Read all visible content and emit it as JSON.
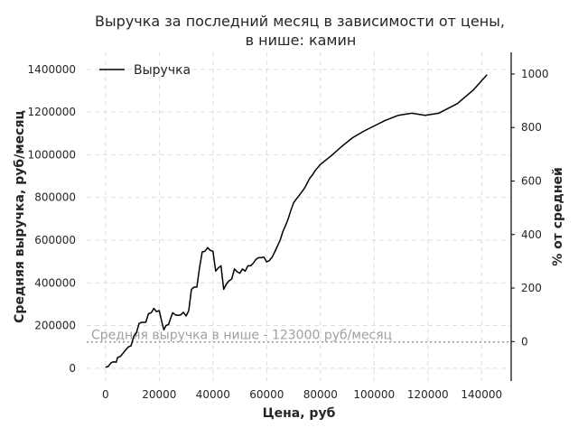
{
  "chart_data": {
    "type": "line",
    "title_line1": "Выручка за последний месяц в зависимости от цены,",
    "title_line2": "в нише: камин",
    "xlabel": "Цена, руб",
    "ylabel": "Средняя выручка, руб/месяц",
    "ylabel_right": "% от средней",
    "xlim": [
      -7000,
      151000
    ],
    "ylim": [
      -60000,
      1480000
    ],
    "ylim_right": [
      -147.5,
      1080.9
    ],
    "x_ticks": [
      0,
      20000,
      40000,
      60000,
      80000,
      100000,
      120000,
      140000
    ],
    "y_ticks": [
      0,
      200000,
      400000,
      600000,
      800000,
      1000000,
      1200000,
      1400000
    ],
    "y_ticks_right": [
      0,
      200,
      400,
      600,
      800,
      1000
    ],
    "grid": true,
    "legend_position": "top-left",
    "series": [
      {
        "name": "Выручка",
        "color": "#000000",
        "x": [
          0,
          1000,
          2000,
          3000,
          4000,
          4500,
          5500,
          6500,
          7500,
          8500,
          9500,
          10500,
          11500,
          12500,
          13500,
          15000,
          16000,
          17000,
          18000,
          19000,
          20000,
          21000,
          21700,
          22500,
          23500,
          24000,
          25000,
          26000,
          27000,
          28000,
          29000,
          30000,
          31000,
          32000,
          33000,
          34000,
          35000,
          36000,
          37000,
          38000,
          39000,
          40000,
          41000,
          42000,
          43000,
          44000,
          45000,
          46000,
          47000,
          48000,
          49000,
          50000,
          51000,
          52000,
          53000,
          54000,
          55000,
          56000,
          57000,
          58000,
          59000,
          60000,
          61000,
          62000,
          63000,
          64000,
          65000,
          66000,
          67000,
          68000,
          69000,
          70000,
          71000,
          72000,
          73000,
          74000,
          75000,
          76000,
          77000,
          78000,
          80000,
          84000,
          88000,
          92000,
          96000,
          100000,
          104000,
          109000,
          114000,
          119000,
          124000,
          131000,
          137000,
          142000
        ],
        "y": [
          5000,
          8000,
          25000,
          30000,
          28000,
          50000,
          55000,
          70000,
          85000,
          100000,
          105000,
          150000,
          165000,
          210000,
          215000,
          215000,
          255000,
          260000,
          280000,
          265000,
          270000,
          215000,
          180000,
          200000,
          205000,
          225000,
          260000,
          250000,
          248000,
          250000,
          262000,
          245000,
          270000,
          370000,
          380000,
          380000,
          470000,
          545000,
          548000,
          565000,
          552000,
          548000,
          455000,
          470000,
          480000,
          370000,
          395000,
          410000,
          418000,
          465000,
          452000,
          445000,
          465000,
          455000,
          480000,
          480000,
          492000,
          510000,
          518000,
          518000,
          520000,
          498000,
          505000,
          520000,
          545000,
          572000,
          600000,
          640000,
          668000,
          700000,
          740000,
          775000,
          792000,
          808000,
          825000,
          842000,
          865000,
          890000,
          905000,
          925000,
          955000,
          995000,
          1040000,
          1080000,
          1110000,
          1135000,
          1160000,
          1185000,
          1195000,
          1185000,
          1195000,
          1240000,
          1305000,
          1375000
        ]
      }
    ],
    "reference_line": {
      "label": "Средняя выручка в нише - 123000 руб/месяц",
      "y": 123000,
      "color": "#999999"
    }
  }
}
